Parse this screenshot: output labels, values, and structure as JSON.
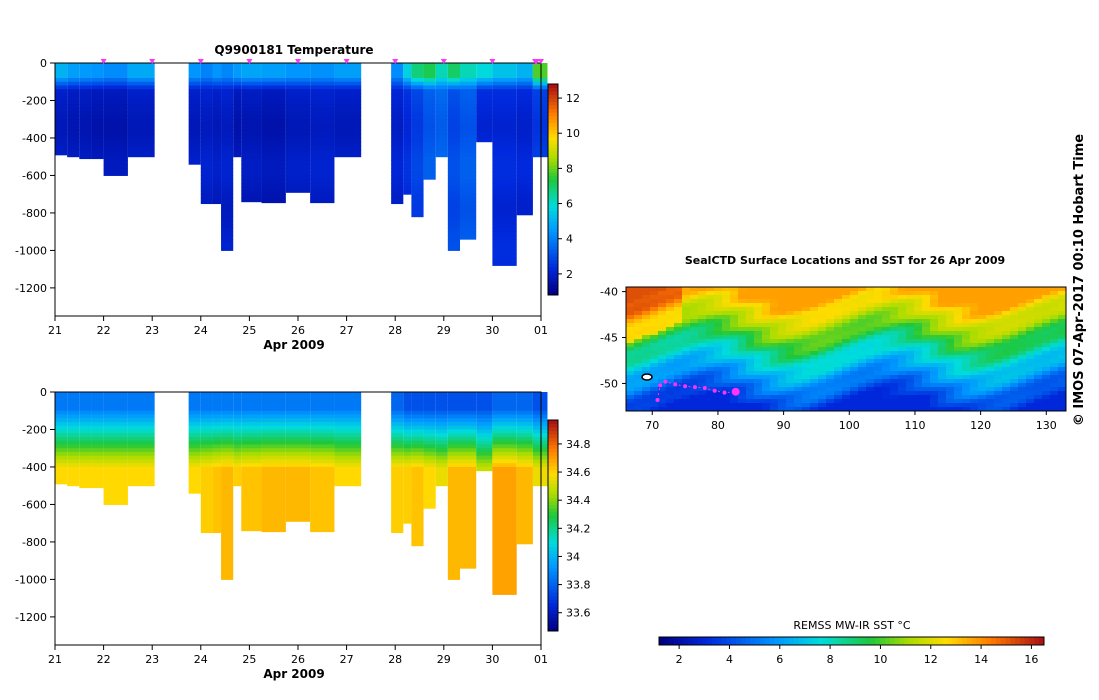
{
  "chart_data": [
    {
      "type": "heatmap",
      "title": "Q9900181  Temperature",
      "xlabel": "Apr 2009",
      "x_ticks": [
        "21",
        "22",
        "23",
        "24",
        "25",
        "26",
        "27",
        "28",
        "29",
        "30",
        "01"
      ],
      "y_ticks": [
        0,
        -200,
        -400,
        -600,
        -800,
        -1000,
        -1200
      ],
      "xlim": [
        "2009-04-21",
        "2009-05-01"
      ],
      "ylim": [
        -1350,
        0
      ],
      "colorbar": {
        "ticks": [
          2,
          4,
          6,
          8,
          10,
          12
        ],
        "range": [
          0.8,
          12.8
        ]
      },
      "profiles": [
        {
          "date": "2009-04-21T00:00",
          "depth": 490,
          "surface": 5.0,
          "core": 1.8
        },
        {
          "date": "2009-04-21T06:00",
          "depth": 500,
          "surface": 4.6,
          "core": 1.7
        },
        {
          "date": "2009-04-21T12:00",
          "depth": 510,
          "surface": 4.5,
          "core": 1.7
        },
        {
          "date": "2009-04-21T18:00",
          "depth": 510,
          "surface": 4.4,
          "core": 1.6
        },
        {
          "date": "2009-04-22T00:00",
          "depth": 600,
          "surface": 4.2,
          "core": 1.6
        },
        {
          "date": "2009-04-22T12:00",
          "depth": 500,
          "surface": 4.8,
          "core": 1.8
        },
        {
          "date": "2009-04-23T18:00",
          "depth": 540,
          "surface": 4.4,
          "core": 1.8
        },
        {
          "date": "2009-04-24T00:00",
          "depth": 750,
          "surface": 4.0,
          "core": 1.9
        },
        {
          "date": "2009-04-24T06:00",
          "depth": 750,
          "surface": 4.4,
          "core": 1.8
        },
        {
          "date": "2009-04-24T10:00",
          "depth": 1000,
          "surface": 4.1,
          "core": 1.9
        },
        {
          "date": "2009-04-24T16:00",
          "depth": 500,
          "surface": 4.5,
          "core": 1.6
        },
        {
          "date": "2009-04-24T20:00",
          "depth": 740,
          "surface": 4.7,
          "core": 1.7
        },
        {
          "date": "2009-04-25T06:00",
          "depth": 745,
          "surface": 4.6,
          "core": 1.6
        },
        {
          "date": "2009-04-25T18:00",
          "depth": 690,
          "surface": 4.4,
          "core": 1.8
        },
        {
          "date": "2009-04-26T06:00",
          "depth": 745,
          "surface": 4.3,
          "core": 1.9
        },
        {
          "date": "2009-04-26T18:00",
          "depth": 500,
          "surface": 4.6,
          "core": 1.8
        },
        {
          "date": "2009-04-27T22:00",
          "depth": 750,
          "surface": 4.2,
          "core": 2.0
        },
        {
          "date": "2009-04-28T04:00",
          "depth": 700,
          "surface": 5.6,
          "core": 2.3
        },
        {
          "date": "2009-04-28T08:00",
          "depth": 820,
          "surface": 6.8,
          "core": 2.7
        },
        {
          "date": "2009-04-28T14:00",
          "depth": 620,
          "surface": 7.2,
          "core": 3.2
        },
        {
          "date": "2009-04-28T20:00",
          "depth": 500,
          "surface": 6.2,
          "core": 3.4
        },
        {
          "date": "2009-04-29T02:00",
          "depth": 1000,
          "surface": 7.0,
          "core": 2.9
        },
        {
          "date": "2009-04-29T08:00",
          "depth": 940,
          "surface": 6.2,
          "core": 3.2
        },
        {
          "date": "2009-04-29T16:00",
          "depth": 420,
          "surface": 5.8,
          "core": 2.2
        },
        {
          "date": "2009-04-30T00:00",
          "depth": 1080,
          "surface": 5.3,
          "core": 2.2
        },
        {
          "date": "2009-04-30T12:00",
          "depth": 810,
          "surface": 5.0,
          "core": 2.1
        },
        {
          "date": "2009-04-30T20:00",
          "depth": 500,
          "surface": 7.8,
          "core": 2.6
        }
      ]
    },
    {
      "type": "heatmap",
      "title": "",
      "xlabel": "Apr 2009",
      "x_ticks": [
        "21",
        "22",
        "23",
        "24",
        "25",
        "26",
        "27",
        "28",
        "29",
        "30",
        "01"
      ],
      "y_ticks": [
        0,
        -200,
        -400,
        -600,
        -800,
        -1000,
        -1200
      ],
      "xlim": [
        "2009-04-21",
        "2009-05-01"
      ],
      "ylim": [
        -1350,
        0
      ],
      "colorbar": {
        "ticks": [
          33.6,
          33.8,
          34,
          34.2,
          34.4,
          34.6,
          34.8
        ],
        "range": [
          33.47,
          34.97
        ]
      },
      "profiles": [
        {
          "date": "2009-04-21T00:00",
          "depth": 490,
          "surface": 33.85,
          "deep": 34.6
        },
        {
          "date": "2009-04-21T06:00",
          "depth": 500,
          "surface": 33.85,
          "deep": 34.6
        },
        {
          "date": "2009-04-21T12:00",
          "depth": 510,
          "surface": 33.85,
          "deep": 34.6
        },
        {
          "date": "2009-04-21T18:00",
          "depth": 510,
          "surface": 33.85,
          "deep": 34.6
        },
        {
          "date": "2009-04-22T00:00",
          "depth": 600,
          "surface": 33.85,
          "deep": 34.6
        },
        {
          "date": "2009-04-22T12:00",
          "depth": 500,
          "surface": 33.85,
          "deep": 34.6
        },
        {
          "date": "2009-04-23T18:00",
          "depth": 540,
          "surface": 33.85,
          "deep": 34.6
        },
        {
          "date": "2009-04-24T00:00",
          "depth": 750,
          "surface": 33.85,
          "deep": 34.62
        },
        {
          "date": "2009-04-24T06:00",
          "depth": 750,
          "surface": 33.85,
          "deep": 34.64
        },
        {
          "date": "2009-04-24T10:00",
          "depth": 1000,
          "surface": 33.85,
          "deep": 34.66
        },
        {
          "date": "2009-04-24T16:00",
          "depth": 500,
          "surface": 33.85,
          "deep": 34.62
        },
        {
          "date": "2009-04-24T20:00",
          "depth": 740,
          "surface": 33.85,
          "deep": 34.64
        },
        {
          "date": "2009-04-25T06:00",
          "depth": 745,
          "surface": 33.85,
          "deep": 34.66
        },
        {
          "date": "2009-04-25T18:00",
          "depth": 690,
          "surface": 33.85,
          "deep": 34.66
        },
        {
          "date": "2009-04-26T06:00",
          "depth": 745,
          "surface": 33.85,
          "deep": 34.64
        },
        {
          "date": "2009-04-26T18:00",
          "depth": 500,
          "surface": 33.85,
          "deep": 34.6
        },
        {
          "date": "2009-04-27T22:00",
          "depth": 750,
          "surface": 33.8,
          "deep": 34.62
        },
        {
          "date": "2009-04-28T04:00",
          "depth": 700,
          "surface": 33.75,
          "deep": 34.62
        },
        {
          "date": "2009-04-28T08:00",
          "depth": 820,
          "surface": 33.75,
          "deep": 34.64
        },
        {
          "date": "2009-04-28T14:00",
          "depth": 620,
          "surface": 33.75,
          "deep": 34.6
        },
        {
          "date": "2009-04-28T20:00",
          "depth": 500,
          "surface": 33.75,
          "deep": 34.56
        },
        {
          "date": "2009-04-29T02:00",
          "depth": 1000,
          "surface": 33.75,
          "deep": 34.66
        },
        {
          "date": "2009-04-29T08:00",
          "depth": 940,
          "surface": 33.75,
          "deep": 34.66
        },
        {
          "date": "2009-04-29T16:00",
          "depth": 420,
          "surface": 33.75,
          "deep": 34.5
        },
        {
          "date": "2009-04-30T00:00",
          "depth": 1080,
          "surface": 33.8,
          "deep": 34.7
        },
        {
          "date": "2009-04-30T12:00",
          "depth": 810,
          "surface": 33.8,
          "deep": 34.66
        },
        {
          "date": "2009-04-30T20:00",
          "depth": 500,
          "surface": 33.75,
          "deep": 34.56
        }
      ]
    },
    {
      "type": "heatmap",
      "title": "SealCTD Surface Locations and SST for 26 Apr 2009",
      "xlim": [
        66,
        133
      ],
      "ylim": [
        -53,
        -39.5
      ],
      "x_ticks": [
        70,
        80,
        90,
        100,
        110,
        120,
        130
      ],
      "y_ticks": [
        -40,
        -45,
        -50
      ],
      "colorbar": {
        "label": "REMSS MW-IR SST °C",
        "ticks": [
          2,
          4,
          6,
          8,
          10,
          12,
          14,
          16
        ],
        "range": [
          1.2,
          16.5
        ]
      },
      "track": [
        {
          "lon": 70.8,
          "lat": -51.8
        },
        {
          "lon": 71.2,
          "lat": -50.2
        },
        {
          "lon": 72.0,
          "lat": -49.8
        },
        {
          "lon": 73.5,
          "lat": -50.1
        },
        {
          "lon": 75.0,
          "lat": -50.3
        },
        {
          "lon": 76.5,
          "lat": -50.4
        },
        {
          "lon": 78.0,
          "lat": -50.5
        },
        {
          "lon": 79.5,
          "lat": -50.8
        },
        {
          "lon": 81.0,
          "lat": -51.0
        },
        {
          "lon": 82.7,
          "lat": -50.9
        }
      ],
      "current_position": {
        "lon": 82.7,
        "lat": -50.9
      },
      "seal_icon": {
        "lon": 69.2,
        "lat": -49.3
      },
      "sst_field": [
        {
          "lat": -40.5,
          "sst": 13.8
        },
        {
          "lat": -42,
          "sst": 12.3
        },
        {
          "lat": -43.5,
          "sst": 11.2
        },
        {
          "lat": -45,
          "sst": 9.8
        },
        {
          "lat": -46.5,
          "sst": 8.2
        },
        {
          "lat": -48,
          "sst": 7.0
        },
        {
          "lat": -49.5,
          "sst": 5.6
        },
        {
          "lat": -51,
          "sst": 4.2
        },
        {
          "lat": -52.5,
          "sst": 3.0
        }
      ]
    }
  ],
  "credit": "© IMOS 07-Apr-2017 00:10 Hobart Time",
  "colors": {
    "track": "#ff33ff",
    "seal_icon": "#000000"
  }
}
